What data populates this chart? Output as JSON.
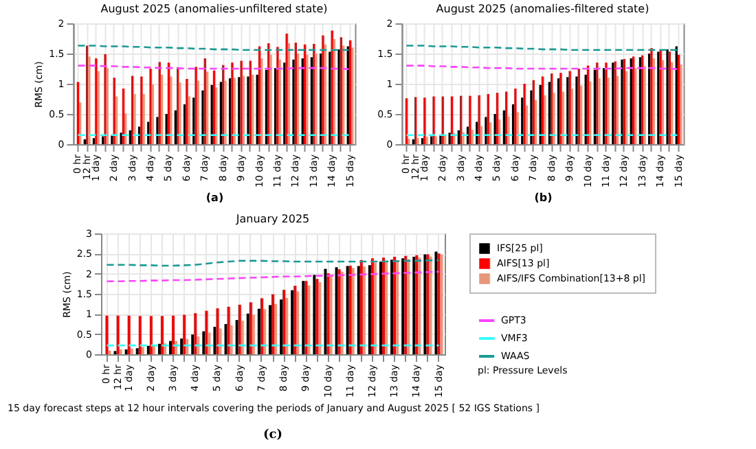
{
  "chart_data": [
    {
      "type": "bar",
      "title": "August 2025 (anomalies-unfiltered state)",
      "ylabel": "RMS (cm)",
      "annotations": [
        "(a)"
      ],
      "grid": true,
      "legend": false,
      "ylim": [
        0,
        2
      ],
      "yticks": [
        0,
        0.5,
        1,
        1.5,
        2
      ],
      "categories": [
        "0 hr",
        "12 hr",
        "1 day",
        null,
        "2 day",
        null,
        "3 day",
        null,
        "4 day",
        null,
        "5 day",
        null,
        "6 day",
        null,
        "7 day",
        null,
        "8 day",
        null,
        "9 day",
        null,
        "10 day",
        null,
        "11 day",
        null,
        "12 day",
        null,
        "13 day",
        null,
        "14 day",
        null,
        "15 day"
      ],
      "series": [
        {
          "color": "#000000",
          "values": [
            null,
            0.08,
            0.1,
            0.13,
            0.15,
            0.19,
            0.23,
            0.29,
            0.37,
            0.45,
            0.5,
            0.56,
            0.66,
            0.77,
            0.89,
            0.98,
            1.03,
            1.09,
            1.11,
            1.12,
            1.15,
            1.23,
            1.26,
            1.35,
            1.4,
            1.42,
            1.44,
            1.5,
            1.53,
            1.57,
            1.62
          ]
        },
        {
          "color": "#ff0000",
          "values": [
            1.03,
            1.63,
            1.42,
            1.49,
            1.1,
            0.92,
            1.13,
            1.12,
            1.25,
            1.36,
            1.35,
            1.27,
            1.08,
            1.28,
            1.42,
            1.22,
            1.31,
            1.35,
            1.38,
            1.38,
            1.62,
            1.67,
            1.61,
            1.83,
            1.68,
            1.65,
            1.66,
            1.8,
            1.88,
            1.77,
            1.72
          ]
        },
        {
          "color": "#e8967a",
          "values": [
            0.69,
            1.45,
            1.21,
            1.26,
            0.79,
            0.51,
            0.83,
            0.83,
            0.99,
            1.15,
            1.12,
            1.02,
            0.79,
            1.05,
            1.2,
            0.94,
            1.05,
            1.1,
            1.13,
            1.15,
            1.42,
            1.48,
            1.4,
            1.67,
            1.5,
            1.48,
            1.5,
            1.65,
            1.74,
            1.63,
            1.6
          ]
        },
        {
          "type": "line",
          "line_style": "dashed",
          "color": "#ff44ff",
          "values": [
            1.3,
            1.3,
            1.3,
            1.29,
            1.29,
            1.28,
            1.28,
            1.27,
            1.27,
            1.26,
            1.26,
            1.26,
            1.25,
            1.25,
            1.25,
            1.25,
            1.25,
            1.25,
            1.25,
            1.25,
            1.25,
            1.25,
            1.25,
            1.25,
            1.26,
            1.26,
            1.26,
            1.26,
            1.25,
            1.25,
            1.24
          ]
        },
        {
          "type": "line",
          "line_style": "dashed",
          "color": "#33ffff",
          "values": [
            0.15,
            0.15,
            0.15,
            0.15,
            0.15,
            0.15,
            0.15,
            0.15,
            0.15,
            0.15,
            0.15,
            0.15,
            0.15,
            0.15,
            0.15,
            0.15,
            0.15,
            0.15,
            0.15,
            0.15,
            0.15,
            0.15,
            0.15,
            0.15,
            0.15,
            0.15,
            0.15,
            0.15,
            0.15,
            0.15,
            0.15
          ]
        },
        {
          "type": "line",
          "line_style": "dashed",
          "color": "#1a9a94",
          "values": [
            1.63,
            1.63,
            1.63,
            1.62,
            1.62,
            1.62,
            1.61,
            1.61,
            1.6,
            1.6,
            1.6,
            1.59,
            1.59,
            1.58,
            1.58,
            1.57,
            1.57,
            1.57,
            1.56,
            1.56,
            1.56,
            1.56,
            1.56,
            1.56,
            1.56,
            1.56,
            1.56,
            1.56,
            1.56,
            1.56,
            1.56
          ]
        }
      ]
    },
    {
      "type": "bar",
      "title": "August 2025 (anomalies-filtered state)",
      "annotations": [
        "(b)"
      ],
      "grid": true,
      "legend": false,
      "ylim": [
        0,
        2
      ],
      "yticks": [
        0,
        0.5,
        1,
        1.5,
        2
      ],
      "categories": [
        "0 hr",
        "12 hr",
        "1 day",
        null,
        "2 day",
        null,
        "3 day",
        null,
        "4 day",
        null,
        "5 day",
        null,
        "6 day",
        null,
        "7 day",
        null,
        "8 day",
        null,
        "9 day",
        null,
        "10 day",
        null,
        "11 day",
        null,
        "12 day",
        null,
        "13 day",
        null,
        "14 day",
        null,
        "15 day"
      ],
      "series": [
        {
          "color": "#000000",
          "values": [
            null,
            0.08,
            0.1,
            0.13,
            0.15,
            0.19,
            0.23,
            0.29,
            0.37,
            0.45,
            0.5,
            0.56,
            0.66,
            0.77,
            0.89,
            0.98,
            1.03,
            1.09,
            1.11,
            1.12,
            1.15,
            1.23,
            1.26,
            1.35,
            1.4,
            1.42,
            1.44,
            1.5,
            1.53,
            1.57,
            1.62
          ]
        },
        {
          "color": "#ff0000",
          "values": [
            0.76,
            0.78,
            0.77,
            0.79,
            0.79,
            0.79,
            0.8,
            0.8,
            0.81,
            0.83,
            0.85,
            0.87,
            0.92,
            1.0,
            1.06,
            1.12,
            1.17,
            1.18,
            1.21,
            1.25,
            1.3,
            1.35,
            1.35,
            1.37,
            1.41,
            1.45,
            1.47,
            1.59,
            1.56,
            1.53,
            1.48
          ]
        },
        {
          "color": "#e8967a",
          "values": [
            0.09,
            0.1,
            0.12,
            0.13,
            0.15,
            0.18,
            0.2,
            0.24,
            0.3,
            0.36,
            0.41,
            0.46,
            0.53,
            0.64,
            0.73,
            0.81,
            0.85,
            0.87,
            0.92,
            0.97,
            1.04,
            1.09,
            1.1,
            1.13,
            1.21,
            1.26,
            1.29,
            1.42,
            1.39,
            1.36,
            1.32
          ]
        },
        {
          "type": "line",
          "line_style": "dashed",
          "color": "#ff44ff",
          "values": [
            1.3,
            1.3,
            1.3,
            1.29,
            1.29,
            1.28,
            1.28,
            1.27,
            1.27,
            1.26,
            1.26,
            1.26,
            1.25,
            1.25,
            1.25,
            1.25,
            1.25,
            1.25,
            1.25,
            1.25,
            1.25,
            1.25,
            1.25,
            1.25,
            1.26,
            1.26,
            1.26,
            1.26,
            1.25,
            1.25,
            1.24
          ]
        },
        {
          "type": "line",
          "line_style": "dashed",
          "color": "#33ffff",
          "values": [
            0.15,
            0.15,
            0.15,
            0.15,
            0.15,
            0.15,
            0.15,
            0.15,
            0.15,
            0.15,
            0.15,
            0.15,
            0.15,
            0.15,
            0.15,
            0.15,
            0.15,
            0.15,
            0.15,
            0.15,
            0.15,
            0.15,
            0.15,
            0.15,
            0.15,
            0.15,
            0.15,
            0.15,
            0.15,
            0.15,
            0.15
          ]
        },
        {
          "type": "line",
          "line_style": "dashed",
          "color": "#1a9a94",
          "values": [
            1.63,
            1.63,
            1.63,
            1.62,
            1.62,
            1.62,
            1.61,
            1.61,
            1.6,
            1.6,
            1.6,
            1.59,
            1.59,
            1.58,
            1.58,
            1.57,
            1.57,
            1.57,
            1.56,
            1.56,
            1.56,
            1.56,
            1.56,
            1.56,
            1.56,
            1.56,
            1.56,
            1.56,
            1.56,
            1.56,
            1.56
          ]
        }
      ]
    },
    {
      "type": "bar",
      "title": "January 2025",
      "ylabel": "RMS (cm)",
      "xlabel": "15 day forecast steps at 12 hour intervals covering the periods of January and August 2025 [ 52 IGS Stations ]",
      "annotations": [
        "(c)",
        "pl: Pressure Levels"
      ],
      "grid": true,
      "legend": "right",
      "ylim": [
        0,
        3
      ],
      "yticks": [
        0,
        0.5,
        1,
        1.5,
        2,
        2.5,
        3
      ],
      "categories": [
        "0 hr",
        "12 hr",
        "1 day",
        null,
        "2 day",
        null,
        "3 day",
        null,
        "4 day",
        null,
        "5 day",
        null,
        "6 day",
        null,
        "7 day",
        null,
        "8 day",
        null,
        "9 day",
        null,
        "10 day",
        null,
        "11 day",
        null,
        "12 day",
        null,
        "13 day",
        null,
        "14 day",
        null,
        "15 day"
      ],
      "series": [
        {
          "name": "IFS[25 pl]",
          "color": "#000000",
          "values": [
            null,
            0.08,
            0.12,
            0.15,
            0.21,
            0.26,
            0.33,
            0.39,
            0.49,
            0.57,
            0.68,
            0.75,
            0.85,
            1.01,
            1.13,
            1.22,
            1.36,
            1.59,
            1.82,
            1.97,
            2.12,
            2.16,
            2.19,
            2.19,
            2.21,
            2.3,
            2.35,
            2.38,
            2.42,
            2.48,
            2.55
          ]
        },
        {
          "name": "AIFS[13 pl]",
          "color": "#ff0000",
          "values": [
            0.96,
            0.96,
            0.96,
            0.95,
            0.95,
            0.95,
            0.96,
            0.98,
            1.02,
            1.08,
            1.14,
            1.18,
            1.23,
            1.29,
            1.39,
            1.49,
            1.6,
            1.7,
            1.82,
            1.87,
            2.01,
            2.11,
            2.2,
            2.34,
            2.38,
            2.4,
            2.42,
            2.44,
            2.46,
            2.48,
            2.5
          ]
        },
        {
          "name": "AIFS/IFS Combination[13+8 pl]",
          "color": "#e8967a",
          "values": [
            0.09,
            0.12,
            0.14,
            0.18,
            0.22,
            0.27,
            0.33,
            0.38,
            0.44,
            0.54,
            0.64,
            0.72,
            0.83,
            0.98,
            1.12,
            1.25,
            1.4,
            1.56,
            1.71,
            1.79,
            1.97,
            2.05,
            2.14,
            2.18,
            2.27,
            2.3,
            2.33,
            2.36,
            2.4,
            2.43,
            2.47
          ]
        },
        {
          "name": "GPT3",
          "type": "line",
          "line_style": "dashed",
          "color": "#ff44ff",
          "values": [
            1.81,
            1.81,
            1.82,
            1.82,
            1.83,
            1.83,
            1.84,
            1.84,
            1.85,
            1.86,
            1.87,
            1.88,
            1.89,
            1.9,
            1.91,
            1.92,
            1.93,
            1.93,
            1.94,
            1.95,
            1.95,
            1.96,
            1.97,
            1.98,
            1.99,
            2.0,
            2.01,
            2.02,
            2.03,
            2.04,
            2.05
          ]
        },
        {
          "name": "VMF3",
          "type": "line",
          "line_style": "dashed",
          "color": "#33ffff",
          "values": [
            0.22,
            0.22,
            0.22,
            0.22,
            0.22,
            0.22,
            0.22,
            0.22,
            0.22,
            0.22,
            0.22,
            0.22,
            0.22,
            0.22,
            0.22,
            0.22,
            0.22,
            0.22,
            0.22,
            0.22,
            0.22,
            0.22,
            0.22,
            0.22,
            0.22,
            0.22,
            0.22,
            0.22,
            0.22,
            0.22,
            0.22
          ]
        },
        {
          "name": "WAAS",
          "type": "line",
          "line_style": "dashed",
          "color": "#1a9a94",
          "values": [
            2.22,
            2.22,
            2.22,
            2.21,
            2.21,
            2.2,
            2.2,
            2.21,
            2.22,
            2.25,
            2.28,
            2.3,
            2.32,
            2.32,
            2.32,
            2.31,
            2.31,
            2.3,
            2.3,
            2.3,
            2.3,
            2.3,
            2.3,
            2.3,
            2.3,
            2.3,
            2.31,
            2.32,
            2.32,
            2.33,
            2.33
          ]
        }
      ]
    }
  ]
}
